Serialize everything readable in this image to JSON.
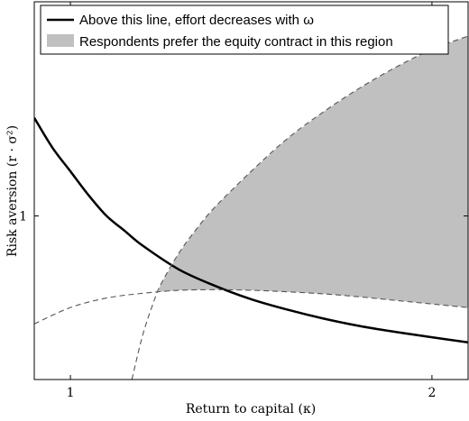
{
  "chart_data": {
    "type": "line",
    "xlabel": "Return to capital (κ)",
    "ylabel": "Risk aversion (r · σ²)",
    "xlim": [
      0.9,
      2.1
    ],
    "ylim": [
      0.45,
      1.72
    ],
    "x_ticks": [
      {
        "value": 1,
        "label": "1"
      },
      {
        "value": 2,
        "label": "2"
      }
    ],
    "y_ticks": [
      {
        "value": 1,
        "label": "1"
      }
    ],
    "legend_position": "top",
    "legend": [
      {
        "label": "Above this line, effort decreases with ω",
        "style": "black-solid-line"
      },
      {
        "label": "Respondents prefer the equity contract in this region",
        "style": "gray-patch"
      }
    ],
    "grid": false,
    "series": [
      {
        "name": "Above this line, effort decreases with ω",
        "color": "#000000",
        "style": "solid",
        "x": [
          0.9,
          0.95,
          1.0,
          1.05,
          1.1,
          1.15,
          1.2,
          1.3,
          1.4,
          1.5,
          1.6,
          1.7,
          1.8,
          1.9,
          2.0,
          2.1
        ],
        "y": [
          1.33,
          1.23,
          1.15,
          1.07,
          1.0,
          0.95,
          0.9,
          0.82,
          0.765,
          0.72,
          0.685,
          0.655,
          0.63,
          0.61,
          0.592,
          0.575
        ]
      },
      {
        "name": "",
        "color": "#555555",
        "style": "dashed",
        "x": [
          0.9,
          1.0,
          1.1,
          1.2,
          1.3,
          1.4,
          1.5,
          1.6,
          1.7,
          1.8,
          1.9,
          2.0,
          2.1
        ],
        "y": [
          0.637,
          0.692,
          0.724,
          0.74,
          0.75,
          0.752,
          0.75,
          0.745,
          0.738,
          0.728,
          0.716,
          0.704,
          0.692
        ]
      },
      {
        "name": "",
        "color": "#555555",
        "style": "dashed",
        "x": [
          1.17,
          1.2,
          1.23,
          1.25,
          1.3,
          1.35,
          1.4,
          1.5,
          1.6,
          1.7,
          1.8,
          1.9,
          2.0,
          2.1
        ],
        "y": [
          0.45,
          0.6,
          0.71,
          0.77,
          0.875,
          0.958,
          1.03,
          1.15,
          1.26,
          1.35,
          1.43,
          1.5,
          1.56,
          1.605
        ]
      }
    ],
    "shaded_region": {
      "label": "Respondents prefer the equity contract in this region",
      "color": "#c0c0c0",
      "description_bounds": "between the two dashed curves, right of their intersection"
    }
  }
}
